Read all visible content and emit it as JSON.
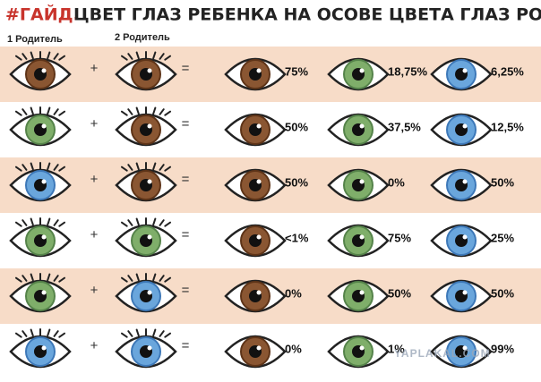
{
  "header": {
    "tag": "#ГАЙД.",
    "title": "ЦВЕТ ГЛАЗ РЕБЕНКА НА ОСОВЕ ЦВЕТА ГЛАЗ РОДИТЕЛЕЙ",
    "parent_1": "1 Родитель",
    "parent_2": "2 Родитель"
  },
  "rows": [
    {
      "plus": "+",
      "equals": "=",
      "percents": [
        "75%",
        "18,75%",
        "6,25%"
      ]
    },
    {
      "plus": "+",
      "equals": "=",
      "percents": [
        "50%",
        "37,5%",
        "12,5%"
      ]
    },
    {
      "plus": "+",
      "equals": "=",
      "percents": [
        "50%",
        "0%",
        "50%"
      ]
    },
    {
      "plus": "+",
      "equals": "=",
      "percents": [
        "<1%",
        "75%",
        "25%"
      ]
    },
    {
      "plus": "+",
      "equals": "=",
      "percents": [
        "0%",
        "50%",
        "50%"
      ]
    },
    {
      "plus": "+",
      "equals": "=",
      "percents": [
        "0%",
        "1%",
        "99%"
      ]
    }
  ],
  "watermark": "YAPLAKAL.COM"
}
